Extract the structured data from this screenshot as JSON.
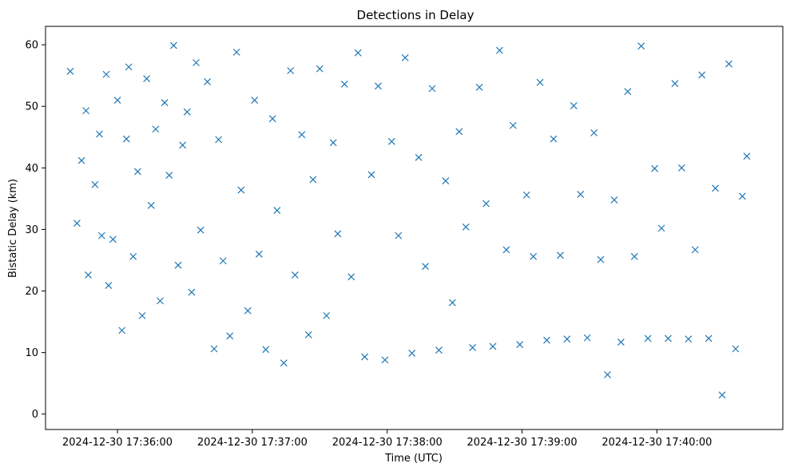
{
  "chart_data": {
    "type": "scatter",
    "title": "Detections in Delay",
    "xlabel": "Time (UTC)",
    "ylabel": "Bistatic Delay (km)",
    "x_ticks": [
      "2024-12-30 17:36:00",
      "2024-12-30 17:37:00",
      "2024-12-30 17:38:00",
      "2024-12-30 17:39:00",
      "2024-12-30 17:40:00"
    ],
    "y_ticks": [
      0,
      10,
      20,
      30,
      40,
      50,
      60
    ],
    "xlim": [
      "2024-12-30 17:35:28",
      "2024-12-30 17:40:56"
    ],
    "ylim": [
      -2.5,
      63
    ],
    "marker": "x",
    "color": "#1f77b4",
    "grid": false,
    "legend": "none",
    "series": [
      {
        "points": [
          [
            "2024-12-30 17:35:39",
            55.7
          ],
          [
            "2024-12-30 17:35:42",
            31.0
          ],
          [
            "2024-12-30 17:35:44",
            41.2
          ],
          [
            "2024-12-30 17:35:46",
            49.3
          ],
          [
            "2024-12-30 17:35:47",
            22.6
          ],
          [
            "2024-12-30 17:35:50",
            37.3
          ],
          [
            "2024-12-30 17:35:52",
            45.5
          ],
          [
            "2024-12-30 17:35:53",
            29.0
          ],
          [
            "2024-12-30 17:35:55",
            55.2
          ],
          [
            "2024-12-30 17:35:56",
            20.9
          ],
          [
            "2024-12-30 17:35:58",
            28.4
          ],
          [
            "2024-12-30 17:36:00",
            51.0
          ],
          [
            "2024-12-30 17:36:02",
            13.6
          ],
          [
            "2024-12-30 17:36:04",
            44.7
          ],
          [
            "2024-12-30 17:36:05",
            56.4
          ],
          [
            "2024-12-30 17:36:07",
            25.6
          ],
          [
            "2024-12-30 17:36:09",
            39.4
          ],
          [
            "2024-12-30 17:36:11",
            16.0
          ],
          [
            "2024-12-30 17:36:13",
            54.5
          ],
          [
            "2024-12-30 17:36:15",
            33.9
          ],
          [
            "2024-12-30 17:36:17",
            46.3
          ],
          [
            "2024-12-30 17:36:19",
            18.4
          ],
          [
            "2024-12-30 17:36:21",
            50.6
          ],
          [
            "2024-12-30 17:36:23",
            38.8
          ],
          [
            "2024-12-30 17:36:25",
            59.9
          ],
          [
            "2024-12-30 17:36:27",
            24.2
          ],
          [
            "2024-12-30 17:36:29",
            43.7
          ],
          [
            "2024-12-30 17:36:31",
            49.1
          ],
          [
            "2024-12-30 17:36:33",
            19.8
          ],
          [
            "2024-12-30 17:36:35",
            57.1
          ],
          [
            "2024-12-30 17:36:37",
            29.9
          ],
          [
            "2024-12-30 17:36:40",
            54.0
          ],
          [
            "2024-12-30 17:36:43",
            10.6
          ],
          [
            "2024-12-30 17:36:45",
            44.6
          ],
          [
            "2024-12-30 17:36:47",
            24.9
          ],
          [
            "2024-12-30 17:36:50",
            12.7
          ],
          [
            "2024-12-30 17:36:53",
            58.8
          ],
          [
            "2024-12-30 17:36:55",
            36.4
          ],
          [
            "2024-12-30 17:36:58",
            16.8
          ],
          [
            "2024-12-30 17:37:01",
            51.0
          ],
          [
            "2024-12-30 17:37:03",
            26.0
          ],
          [
            "2024-12-30 17:37:06",
            10.5
          ],
          [
            "2024-12-30 17:37:09",
            48.0
          ],
          [
            "2024-12-30 17:37:11",
            33.1
          ],
          [
            "2024-12-30 17:37:14",
            8.3
          ],
          [
            "2024-12-30 17:37:17",
            55.8
          ],
          [
            "2024-12-30 17:37:19",
            22.6
          ],
          [
            "2024-12-30 17:37:22",
            45.4
          ],
          [
            "2024-12-30 17:37:25",
            12.9
          ],
          [
            "2024-12-30 17:37:27",
            38.1
          ],
          [
            "2024-12-30 17:37:30",
            56.1
          ],
          [
            "2024-12-30 17:37:33",
            16.0
          ],
          [
            "2024-12-30 17:37:36",
            44.1
          ],
          [
            "2024-12-30 17:37:38",
            29.3
          ],
          [
            "2024-12-30 17:37:41",
            53.6
          ],
          [
            "2024-12-30 17:37:44",
            22.3
          ],
          [
            "2024-12-30 17:37:47",
            58.7
          ],
          [
            "2024-12-30 17:37:50",
            9.3
          ],
          [
            "2024-12-30 17:37:53",
            38.9
          ],
          [
            "2024-12-30 17:37:56",
            53.3
          ],
          [
            "2024-12-30 17:37:59",
            8.8
          ],
          [
            "2024-12-30 17:38:02",
            44.3
          ],
          [
            "2024-12-30 17:38:05",
            29.0
          ],
          [
            "2024-12-30 17:38:08",
            57.9
          ],
          [
            "2024-12-30 17:38:11",
            9.9
          ],
          [
            "2024-12-30 17:38:14",
            41.7
          ],
          [
            "2024-12-30 17:38:17",
            24.0
          ],
          [
            "2024-12-30 17:38:20",
            52.9
          ],
          [
            "2024-12-30 17:38:23",
            10.4
          ],
          [
            "2024-12-30 17:38:26",
            37.9
          ],
          [
            "2024-12-30 17:38:29",
            18.1
          ],
          [
            "2024-12-30 17:38:32",
            45.9
          ],
          [
            "2024-12-30 17:38:35",
            30.4
          ],
          [
            "2024-12-30 17:38:38",
            10.8
          ],
          [
            "2024-12-30 17:38:41",
            53.1
          ],
          [
            "2024-12-30 17:38:44",
            34.2
          ],
          [
            "2024-12-30 17:38:47",
            11.0
          ],
          [
            "2024-12-30 17:38:50",
            59.1
          ],
          [
            "2024-12-30 17:38:53",
            26.7
          ],
          [
            "2024-12-30 17:38:56",
            46.9
          ],
          [
            "2024-12-30 17:38:59",
            11.3
          ],
          [
            "2024-12-30 17:39:02",
            35.6
          ],
          [
            "2024-12-30 17:39:05",
            25.6
          ],
          [
            "2024-12-30 17:39:08",
            53.9
          ],
          [
            "2024-12-30 17:39:11",
            12.0
          ],
          [
            "2024-12-30 17:39:14",
            44.7
          ],
          [
            "2024-12-30 17:39:17",
            25.8
          ],
          [
            "2024-12-30 17:39:20",
            12.2
          ],
          [
            "2024-12-30 17:39:23",
            50.1
          ],
          [
            "2024-12-30 17:39:26",
            35.7
          ],
          [
            "2024-12-30 17:39:29",
            12.4
          ],
          [
            "2024-12-30 17:39:32",
            45.7
          ],
          [
            "2024-12-30 17:39:35",
            25.1
          ],
          [
            "2024-12-30 17:39:38",
            6.4
          ],
          [
            "2024-12-30 17:39:41",
            34.8
          ],
          [
            "2024-12-30 17:39:44",
            11.7
          ],
          [
            "2024-12-30 17:39:47",
            52.4
          ],
          [
            "2024-12-30 17:39:50",
            25.6
          ],
          [
            "2024-12-30 17:39:53",
            59.8
          ],
          [
            "2024-12-30 17:39:56",
            12.3
          ],
          [
            "2024-12-30 17:39:59",
            39.9
          ],
          [
            "2024-12-30 17:40:02",
            30.2
          ],
          [
            "2024-12-30 17:40:05",
            12.3
          ],
          [
            "2024-12-30 17:40:08",
            53.7
          ],
          [
            "2024-12-30 17:40:11",
            40.0
          ],
          [
            "2024-12-30 17:40:14",
            12.2
          ],
          [
            "2024-12-30 17:40:17",
            26.7
          ],
          [
            "2024-12-30 17:40:20",
            55.1
          ],
          [
            "2024-12-30 17:40:23",
            12.3
          ],
          [
            "2024-12-30 17:40:26",
            36.7
          ],
          [
            "2024-12-30 17:40:29",
            3.1
          ],
          [
            "2024-12-30 17:40:32",
            56.9
          ],
          [
            "2024-12-30 17:40:35",
            10.6
          ],
          [
            "2024-12-30 17:40:38",
            35.4
          ],
          [
            "2024-12-30 17:40:40",
            41.9
          ]
        ]
      }
    ]
  }
}
